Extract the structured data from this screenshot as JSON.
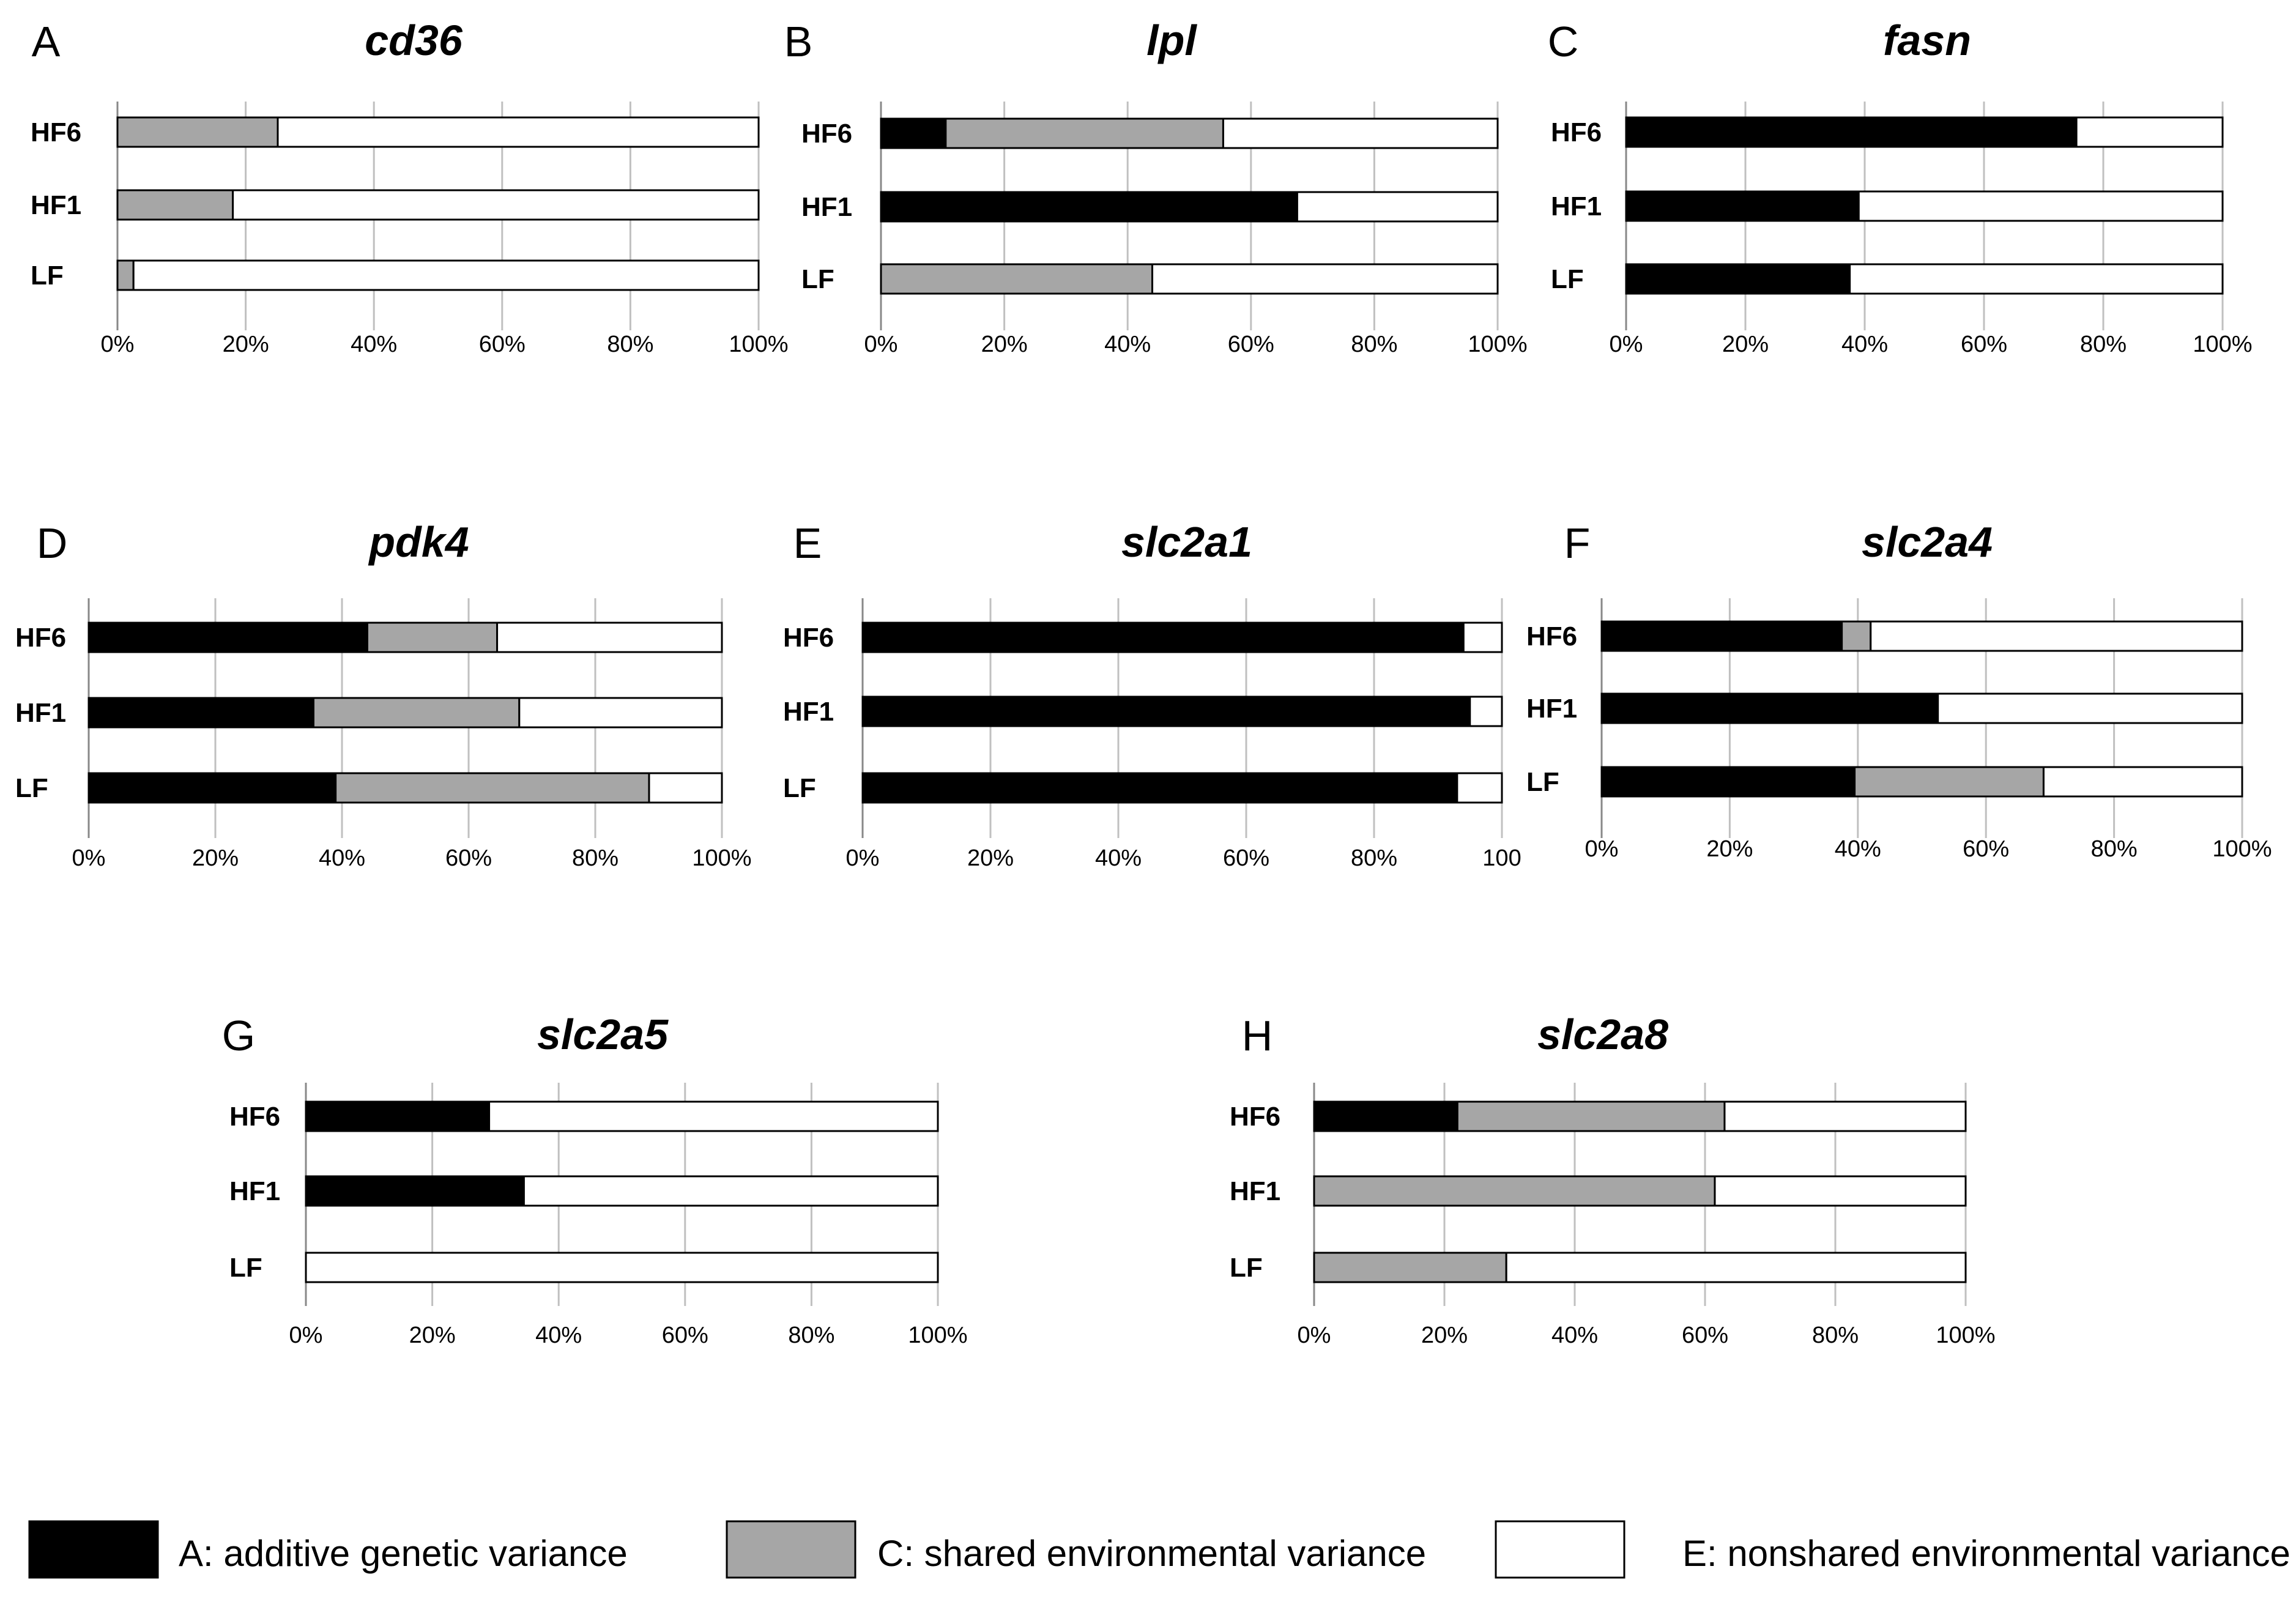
{
  "legend": [
    {
      "key": "A",
      "label": "A: additive genetic variance",
      "color": "#000000"
    },
    {
      "key": "C",
      "label": "C: shared environmental variance",
      "color": "#a6a6a6"
    },
    {
      "key": "E",
      "label": "E: nonshared environmental variance",
      "color": "#ffffff"
    }
  ],
  "chart_data": [
    {
      "type": "bar",
      "orientation": "horizontal",
      "stacked": true,
      "letter": "A",
      "title": "cd36",
      "categories": [
        "HF6",
        "HF1",
        "LF"
      ],
      "series": [
        {
          "name": "A",
          "values": [
            0,
            0,
            0
          ]
        },
        {
          "name": "C",
          "values": [
            25,
            18,
            2.5
          ]
        },
        {
          "name": "E",
          "values": [
            75,
            82,
            97.5
          ]
        }
      ],
      "xlim": [
        0,
        100
      ],
      "tick_labels": [
        "0%",
        "20%",
        "40%",
        "60%",
        "80%",
        "100%"
      ]
    },
    {
      "type": "bar",
      "orientation": "horizontal",
      "stacked": true,
      "letter": "B",
      "title": "lpl",
      "categories": [
        "HF6",
        "HF1",
        "LF"
      ],
      "series": [
        {
          "name": "A",
          "values": [
            10.5,
            67.5,
            0
          ]
        },
        {
          "name": "C",
          "values": [
            45,
            0,
            44
          ]
        },
        {
          "name": "E",
          "values": [
            44.5,
            32.5,
            56
          ]
        }
      ],
      "xlim": [
        0,
        100
      ],
      "tick_labels": [
        "0%",
        "20%",
        "40%",
        "60%",
        "80%",
        "100%"
      ]
    },
    {
      "type": "bar",
      "orientation": "horizontal",
      "stacked": true,
      "letter": "C",
      "title": "fasn",
      "categories": [
        "HF6",
        "HF1",
        "LF"
      ],
      "series": [
        {
          "name": "A",
          "values": [
            75.5,
            39,
            37.5
          ]
        },
        {
          "name": "C",
          "values": [
            0,
            0,
            0
          ]
        },
        {
          "name": "E",
          "values": [
            24.5,
            61,
            62.5
          ]
        }
      ],
      "xlim": [
        0,
        100
      ],
      "tick_labels": [
        "0%",
        "20%",
        "40%",
        "60%",
        "80%",
        "100%"
      ]
    },
    {
      "type": "bar",
      "orientation": "horizontal",
      "stacked": true,
      "letter": "D",
      "title": "pdk4",
      "categories": [
        "HF6",
        "HF1",
        "LF"
      ],
      "series": [
        {
          "name": "A",
          "values": [
            44,
            35.5,
            39
          ]
        },
        {
          "name": "C",
          "values": [
            20.5,
            32.5,
            49.5
          ]
        },
        {
          "name": "E",
          "values": [
            35.5,
            32,
            11.5
          ]
        }
      ],
      "xlim": [
        0,
        100
      ],
      "tick_labels": [
        "0%",
        "20%",
        "40%",
        "60%",
        "80%",
        "100%"
      ]
    },
    {
      "type": "bar",
      "orientation": "horizontal",
      "stacked": true,
      "letter": "E",
      "title": "slc2a1",
      "categories": [
        "HF6",
        "HF1",
        "LF"
      ],
      "series": [
        {
          "name": "A",
          "values": [
            94,
            95,
            93
          ]
        },
        {
          "name": "C",
          "values": [
            0,
            0,
            0
          ]
        },
        {
          "name": "E",
          "values": [
            6,
            5,
            7
          ]
        }
      ],
      "xlim": [
        0,
        100
      ],
      "tick_labels": [
        "0%",
        "20%",
        "40%",
        "60%",
        "80%",
        "100"
      ]
    },
    {
      "type": "bar",
      "orientation": "horizontal",
      "stacked": true,
      "letter": "F",
      "title": "slc2a4",
      "categories": [
        "HF6",
        "HF1",
        "LF"
      ],
      "series": [
        {
          "name": "A",
          "values": [
            37.5,
            52.5,
            39.5
          ]
        },
        {
          "name": "C",
          "values": [
            4.5,
            0,
            29.5
          ]
        },
        {
          "name": "E",
          "values": [
            58,
            47.5,
            31
          ]
        }
      ],
      "xlim": [
        0,
        100
      ],
      "tick_labels": [
        "0%",
        "20%",
        "40%",
        "60%",
        "80%",
        "100%"
      ]
    },
    {
      "type": "bar",
      "orientation": "horizontal",
      "stacked": true,
      "letter": "G",
      "title": "slc2a5",
      "categories": [
        "HF6",
        "HF1",
        "LF"
      ],
      "series": [
        {
          "name": "A",
          "values": [
            29,
            34.5,
            0
          ]
        },
        {
          "name": "C",
          "values": [
            0,
            0,
            0
          ]
        },
        {
          "name": "E",
          "values": [
            71,
            65.5,
            100
          ]
        }
      ],
      "xlim": [
        0,
        100
      ],
      "tick_labels": [
        "0%",
        "20%",
        "40%",
        "60%",
        "80%",
        "100%"
      ]
    },
    {
      "type": "bar",
      "orientation": "horizontal",
      "stacked": true,
      "letter": "H",
      "title": "slc2a8",
      "categories": [
        "HF6",
        "HF1",
        "LF"
      ],
      "series": [
        {
          "name": "A",
          "values": [
            22,
            0,
            0
          ]
        },
        {
          "name": "C",
          "values": [
            41,
            61.5,
            29.5
          ]
        },
        {
          "name": "E",
          "values": [
            37,
            38.5,
            70.5
          ]
        }
      ],
      "xlim": [
        0,
        100
      ],
      "tick_labels": [
        "0%",
        "20%",
        "40%",
        "60%",
        "80%",
        "100%"
      ]
    }
  ]
}
